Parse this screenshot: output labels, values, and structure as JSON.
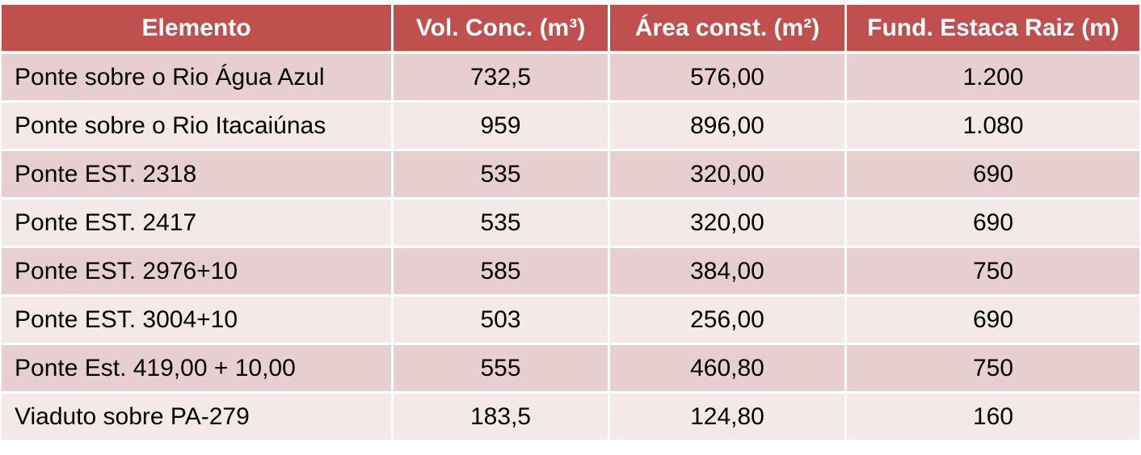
{
  "table": {
    "headers": [
      "Elemento",
      "Vol. Conc. (m³)",
      "Área const. (m²)",
      "Fund. Estaca Raiz (m)"
    ],
    "rows": [
      [
        "Ponte sobre o Rio Água Azul",
        "732,5",
        "576,00",
        "1.200"
      ],
      [
        "Ponte sobre o Rio Itacaiúnas",
        "959",
        "896,00",
        "1.080"
      ],
      [
        "Ponte EST. 2318",
        "535",
        "320,00",
        "690"
      ],
      [
        "Ponte EST. 2417",
        "535",
        "320,00",
        "690"
      ],
      [
        "Ponte EST. 2976+10",
        "585",
        "384,00",
        "750"
      ],
      [
        "Ponte EST. 3004+10",
        "503",
        "256,00",
        "690"
      ],
      [
        "Ponte Est. 419,00 + 10,00",
        "555",
        "460,80",
        "750"
      ],
      [
        "Viaduto sobre PA-279",
        "183,5",
        "124,80",
        "160"
      ]
    ]
  },
  "colors": {
    "header_bg": "#c0504d",
    "header_text": "#ffffff",
    "row_odd_bg": "#e8cfcf",
    "row_even_bg": "#f4e8e8"
  }
}
